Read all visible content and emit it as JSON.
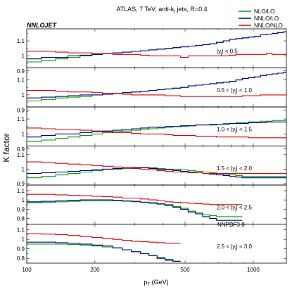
{
  "chart_data": {
    "type": "line",
    "title": "ATLAS, 7 TeV, anti-k",
    "title_sub": "t",
    "title_tail": " jets, R=0.4",
    "tag": "NNLOJET",
    "pdf_label": "NNPDF3.0",
    "ylabel": "K factor",
    "xlabel": "p",
    "xlabel_sub": "T",
    "xlabel_tail": " (GeV)",
    "xscale": "log",
    "xlim": [
      100,
      1400
    ],
    "xticks": [
      {
        "v": 100,
        "t": "100"
      },
      {
        "v": 200,
        "t": "200"
      },
      {
        "v": 500,
        "t": "500"
      },
      {
        "v": 1000,
        "t": "1000"
      }
    ],
    "legend_position": "top-right",
    "legend": [
      {
        "name": "NLO/LO",
        "color": "#00a000"
      },
      {
        "name": "NNLO/LO",
        "color": "#000090"
      },
      {
        "name": "NNLO/NLO",
        "color": "#e00000"
      }
    ],
    "panels": [
      {
        "label": "|y",
        "label_sub": "j",
        "label_tail": "| < 0.5",
        "ylim": [
          0.92,
          1.18
        ],
        "yticks": [
          "0.9",
          "1",
          "1.1"
        ],
        "edges": [
          100,
          116,
          134,
          152,
          172,
          194,
          216,
          240,
          264,
          290,
          318,
          346,
          376,
          408,
          442,
          478,
          516,
          556,
          598,
          642,
          688,
          736,
          786,
          838,
          894,
          952,
          1012,
          1076,
          1142,
          1212,
          1282,
          1356,
          1400
        ],
        "series": [
          [
            0.96,
            0.97,
            0.98,
            0.99,
            1.0,
            1.01,
            1.015,
            1.02,
            1.025,
            1.03,
            1.035,
            1.04,
            1.045,
            1.05,
            1.055,
            1.06,
            1.065,
            1.07,
            1.075,
            1.08,
            1.09,
            1.1,
            1.11,
            1.115,
            1.12,
            1.125,
            1.13,
            1.14,
            1.145,
            1.15,
            1.155,
            1.16
          ],
          [
            0.98,
            0.99,
            0.99,
            1.0,
            1.005,
            1.01,
            1.015,
            1.02,
            1.025,
            1.03,
            1.035,
            1.04,
            1.045,
            1.05,
            1.055,
            1.06,
            1.065,
            1.07,
            1.075,
            1.08,
            1.09,
            1.1,
            1.11,
            1.115,
            1.12,
            1.125,
            1.13,
            1.14,
            1.145,
            1.15,
            1.155,
            1.16
          ],
          [
            1.03,
            1.03,
            1.025,
            1.02,
            1.02,
            1.015,
            1.015,
            1.01,
            1.01,
            1.01,
            1.005,
            1.0,
            1.0,
            1.0,
            1.0,
            0.99,
            1.0,
            1.0,
            1.0,
            1.0,
            1.0,
            1.0,
            1.005,
            1.01,
            1.01,
            1.01,
            1.01,
            1.01,
            1.015,
            1.01,
            1.01,
            1.01
          ]
        ]
      },
      {
        "label": "0.5 < |y",
        "label_sub": "j",
        "label_tail": "| < 1.0",
        "ylim": [
          0.92,
          1.18
        ],
        "yticks": [
          "0.9",
          "1",
          "1.1"
        ],
        "edges": [
          100,
          116,
          134,
          152,
          172,
          194,
          216,
          240,
          264,
          290,
          318,
          346,
          376,
          408,
          442,
          478,
          516,
          556,
          598,
          642,
          688,
          736,
          786,
          838,
          894,
          952,
          1012,
          1076,
          1142,
          1212,
          1282,
          1356,
          1400
        ],
        "series": [
          [
            0.96,
            0.97,
            0.98,
            0.985,
            0.99,
            1.0,
            1.005,
            1.01,
            1.015,
            1.02,
            1.025,
            1.03,
            1.035,
            1.04,
            1.045,
            1.05,
            1.06,
            1.065,
            1.07,
            1.075,
            1.08,
            1.085,
            1.09,
            1.1,
            1.11,
            1.115,
            1.12,
            1.13,
            1.135,
            1.14,
            1.145,
            1.15
          ],
          [
            0.98,
            0.985,
            0.99,
            0.995,
            1.0,
            1.0,
            1.005,
            1.01,
            1.015,
            1.02,
            1.025,
            1.03,
            1.035,
            1.04,
            1.045,
            1.05,
            1.06,
            1.065,
            1.07,
            1.075,
            1.08,
            1.085,
            1.09,
            1.1,
            1.11,
            1.115,
            1.12,
            1.13,
            1.135,
            1.14,
            1.145,
            1.15
          ],
          [
            1.03,
            1.03,
            1.025,
            1.02,
            1.02,
            1.015,
            1.01,
            1.01,
            1.005,
            1.0,
            1.0,
            1.0,
            1.0,
            0.995,
            0.995,
            0.99,
            0.99,
            0.99,
            0.99,
            0.99,
            0.99,
            0.99,
            0.99,
            0.99,
            0.995,
            0.995,
            0.995,
            1.0,
            1.0,
            1.0,
            1.0,
            1.0
          ]
        ]
      },
      {
        "label": "1.0 < |y",
        "label_sub": "j",
        "label_tail": "| < 1.5",
        "ylim": [
          0.92,
          1.18
        ],
        "yticks": [
          "0.9",
          "1",
          "1.1"
        ],
        "edges": [
          100,
          116,
          134,
          152,
          172,
          194,
          216,
          240,
          264,
          290,
          318,
          346,
          376,
          408,
          442,
          478,
          516,
          556,
          598,
          642,
          688,
          736,
          786,
          838,
          894,
          952,
          1012,
          1076,
          1142,
          1212,
          1282,
          1356,
          1400
        ],
        "series": [
          [
            0.95,
            0.96,
            0.97,
            0.98,
            0.99,
            1.0,
            1.01,
            1.015,
            1.02,
            1.025,
            1.03,
            1.035,
            1.04,
            1.045,
            1.05,
            1.05,
            1.055,
            1.06,
            1.06,
            1.065,
            1.065,
            1.07,
            1.07,
            1.075,
            1.075,
            1.08,
            1.08,
            1.085,
            1.085,
            1.09,
            1.09,
            1.09
          ],
          [
            0.98,
            0.99,
            1.0,
            1.0,
            1.01,
            1.015,
            1.02,
            1.025,
            1.03,
            1.035,
            1.04,
            1.045,
            1.045,
            1.05,
            1.05,
            1.055,
            1.055,
            1.06,
            1.06,
            1.06,
            1.065,
            1.065,
            1.07,
            1.07,
            1.07,
            1.075,
            1.075,
            1.075,
            1.08,
            1.08,
            1.08,
            1.08
          ],
          [
            1.04,
            1.035,
            1.03,
            1.03,
            1.025,
            1.02,
            1.015,
            1.01,
            1.01,
            1.005,
            1.0,
            1.0,
            1.0,
            0.995,
            0.99,
            0.99,
            0.99,
            0.985,
            0.985,
            0.985,
            0.98,
            0.98,
            0.98,
            0.98,
            0.98,
            0.975,
            0.975,
            0.975,
            0.975,
            0.975,
            0.975,
            0.975
          ]
        ]
      },
      {
        "label": "1.5 < |y",
        "label_sub": "j",
        "label_tail": "| < 2.0",
        "ylim": [
          0.89,
          1.16
        ],
        "yticks": [
          "0.9",
          "1",
          "1.1"
        ],
        "edges": [
          100,
          116,
          134,
          152,
          172,
          194,
          216,
          240,
          264,
          290,
          318,
          346,
          376,
          408,
          442,
          478,
          516,
          556,
          598,
          642,
          688,
          736,
          786,
          838,
          894,
          952,
          1012,
          1076,
          1142,
          1212,
          1282,
          1356,
          1400
        ],
        "series": [
          [
            0.94,
            0.95,
            0.96,
            0.97,
            0.98,
            0.99,
            1.0,
            1.0,
            1.005,
            1.01,
            1.01,
            1.01,
            1.005,
            1.0,
            1.0,
            0.995,
            0.99,
            0.985,
            0.98,
            0.975,
            0.97,
            0.965,
            0.96,
            0.955,
            0.95,
            0.95,
            0.95,
            0.95,
            0.95,
            0.95,
            0.95,
            0.95
          ],
          [
            0.97,
            0.975,
            0.98,
            0.985,
            0.99,
            0.995,
            1.0,
            1.005,
            1.01,
            1.01,
            1.01,
            1.005,
            1.0,
            0.995,
            0.99,
            0.985,
            0.98,
            0.975,
            0.97,
            0.965,
            0.96,
            0.955,
            0.95,
            0.945,
            0.94,
            0.94,
            0.94,
            0.94,
            0.94,
            0.94,
            0.94,
            0.94
          ],
          [
            1.05,
            1.045,
            1.04,
            1.035,
            1.03,
            1.025,
            1.02,
            1.015,
            1.01,
            1.005,
            1.0,
            0.995,
            0.99,
            0.985,
            0.98,
            0.98,
            0.975,
            0.975,
            0.97,
            0.97,
            0.97,
            0.97,
            0.97,
            0.97,
            0.97,
            0.97,
            0.97,
            0.97,
            0.97,
            0.97,
            0.97,
            0.97
          ]
        ]
      },
      {
        "label": "2.0 < |y",
        "label_sub": "j",
        "label_tail": "| < 2.5",
        "ylim": [
          0.74,
          1.16
        ],
        "yticks": [
          "0.8",
          "0.9",
          "1",
          "1.1"
        ],
        "edges": [
          100,
          116,
          134,
          152,
          172,
          194,
          216,
          240,
          264,
          290,
          318,
          346,
          376,
          408,
          442,
          478,
          516,
          556,
          598,
          642,
          688,
          736,
          786,
          838,
          894
        ],
        "series": [
          [
            0.97,
            0.975,
            0.98,
            0.985,
            0.99,
            0.99,
            0.99,
            0.99,
            0.985,
            0.98,
            0.975,
            0.97,
            0.96,
            0.95,
            0.93,
            0.91,
            0.88,
            0.86,
            0.84,
            0.83,
            0.82,
            0.82,
            0.82,
            0.82
          ],
          [
            0.98,
            0.985,
            0.99,
            0.995,
            1.0,
            1.0,
            1.0,
            0.995,
            0.99,
            0.985,
            0.975,
            0.965,
            0.955,
            0.94,
            0.92,
            0.9,
            0.87,
            0.85,
            0.82,
            0.8,
            0.78,
            0.78,
            0.78,
            0.78
          ],
          [
            1.06,
            1.06,
            1.055,
            1.05,
            1.045,
            1.04,
            1.035,
            1.03,
            1.02,
            1.02,
            1.01,
            1.0,
            0.99,
            0.98,
            0.975,
            0.97,
            0.965,
            0.96,
            0.955,
            0.95,
            0.95,
            0.95,
            0.95,
            0.95
          ]
        ]
      },
      {
        "label": "2.5 < |y",
        "label_sub": "j",
        "label_tail": "| < 3.0",
        "ylim": [
          0.75,
          1.16
        ],
        "yticks": [
          "0.8",
          "0.9",
          "1",
          "1.1"
        ],
        "edges": [
          100,
          116,
          134,
          152,
          172,
          194,
          216,
          240,
          264,
          290,
          318,
          346,
          376,
          408,
          442,
          478
        ],
        "series": [
          [
            0.95,
            0.95,
            0.95,
            0.945,
            0.94,
            0.93,
            0.92,
            0.91,
            0.89,
            0.87,
            0.85,
            0.83,
            0.81,
            0.79,
            0.77
          ],
          [
            0.97,
            0.97,
            0.965,
            0.96,
            0.95,
            0.94,
            0.93,
            0.91,
            0.89,
            0.87,
            0.85,
            0.83,
            0.8,
            0.78,
            0.77
          ],
          [
            1.06,
            1.055,
            1.05,
            1.04,
            1.03,
            1.02,
            1.01,
            1.0,
            0.99,
            0.98,
            0.975,
            0.97,
            0.965,
            0.96,
            0.96
          ]
        ]
      }
    ]
  }
}
